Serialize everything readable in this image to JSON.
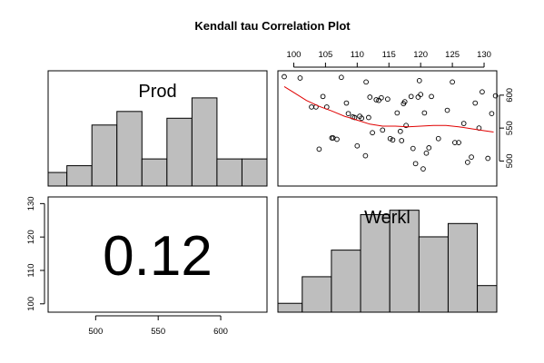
{
  "chart_data": {
    "type": "pairs",
    "title": "Kendall tau Correlation Plot",
    "variables": [
      "Prod",
      "Werkl"
    ],
    "correlation_label": "0.12",
    "axis_x_bottom": {
      "ticks": [
        "500",
        "550",
        "600"
      ],
      "range": [
        462,
        637
      ]
    },
    "axis_x_top": {
      "ticks": [
        "100",
        "105",
        "110",
        "115",
        "120",
        "125",
        "130"
      ],
      "range": [
        97.5,
        132
      ]
    },
    "axis_y_right": {
      "ticks": [
        "500",
        "550",
        "600"
      ],
      "range": [
        462,
        637
      ]
    },
    "axis_y_left": {
      "ticks": [
        "100",
        "110",
        "120",
        "130"
      ],
      "range": [
        97.5,
        132
      ]
    },
    "hist_prod": {
      "bins": [
        [
          462,
          477
        ],
        [
          477,
          497
        ],
        [
          497,
          517
        ],
        [
          517,
          537
        ],
        [
          537,
          557
        ],
        [
          557,
          577
        ],
        [
          577,
          597
        ],
        [
          597,
          617
        ],
        [
          617,
          637
        ]
      ],
      "heights": [
        2,
        3,
        9,
        11,
        4,
        10,
        13,
        4,
        4
      ],
      "max": 17
    },
    "hist_werkl": {
      "bins": [
        [
          97.5,
          100
        ],
        [
          100,
          103
        ],
        [
          103,
          106
        ],
        [
          106,
          109
        ],
        [
          109,
          112
        ],
        [
          112,
          115
        ],
        [
          115,
          118
        ],
        [
          118,
          120
        ]
      ],
      "heights": [
        1,
        4,
        7,
        11,
        11.5,
        8.5,
        10,
        3
      ],
      "max": 13
    },
    "scatter": {
      "x": [
        98.5,
        101,
        102.8,
        103.5,
        104,
        104.6,
        105.2,
        106,
        106.2,
        106.8,
        107.5,
        108.3,
        108.6,
        109.3,
        109.6,
        110,
        110.4,
        110.7,
        111.3,
        111.4,
        111.8,
        112,
        112.4,
        113,
        113.4,
        113.8,
        114,
        114.8,
        115.2,
        115.6,
        116.3,
        116.8,
        117,
        117.3,
        117.5,
        117.7,
        118.5,
        118.8,
        119.2,
        119.6,
        119.8,
        120,
        120.4,
        120.6,
        120.9,
        121.3,
        121.7,
        122.8,
        124.2,
        125,
        125.4,
        126,
        126.8,
        127.4,
        128,
        128.6,
        129.2,
        129.7,
        130.6,
        131.2,
        131.8
      ],
      "y": [
        628,
        626,
        582,
        582,
        518,
        598,
        582,
        535,
        535,
        533,
        627,
        588,
        572,
        567,
        566,
        523,
        568,
        565,
        508,
        620,
        566,
        597,
        543,
        593,
        592,
        596,
        547,
        594,
        534,
        532,
        573,
        545,
        531,
        587,
        590,
        554,
        598,
        519,
        496,
        597,
        622,
        601,
        488,
        573,
        512,
        520,
        598,
        534,
        577,
        620,
        528,
        528,
        557,
        498,
        506,
        588,
        550,
        605,
        504,
        572,
        599
      ],
      "smooth_x": [
        98.5,
        100,
        102,
        104,
        106,
        108,
        110,
        112,
        114,
        116,
        118,
        120,
        122,
        124,
        126,
        128,
        130,
        131.5
      ],
      "smooth_y": [
        613,
        604,
        592,
        583,
        576,
        568,
        562,
        556,
        553,
        553,
        552,
        553,
        554,
        554,
        552,
        549,
        546,
        544
      ]
    }
  }
}
